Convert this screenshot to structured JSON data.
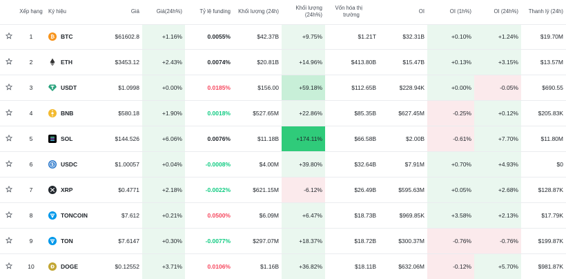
{
  "header": {
    "rank": "Xếp hạng",
    "symbol": "Ký hiệu",
    "price": "Giá",
    "price_change": "Giá(24h%)",
    "funding": "Tỷ lệ funding",
    "volume": "Khối lượng (24h)",
    "volume_change": "Khối lượng (24h%)",
    "mcap_line1": "Vốn hóa thị",
    "mcap_line2": "trường",
    "oi": "OI",
    "oi_1h": "OI (1h%)",
    "oi_24h": "OI (24h%)",
    "liq": "Thanh lý (24h)"
  },
  "rows": [
    {
      "rank": "1",
      "symbol": "BTC",
      "icon": "btc-icon",
      "price": "$61602.8",
      "price_change": "+1.16%",
      "funding": "0.0055%",
      "volume": "$42.37B",
      "volume_change": "+9.75%",
      "mcap": "$1.21T",
      "oi": "$32.31B",
      "oi_1h": "+0.10%",
      "oi_24h": "+1.24%",
      "liq": "$19.70M"
    },
    {
      "rank": "2",
      "symbol": "ETH",
      "icon": "eth-icon",
      "price": "$3453.12",
      "price_change": "+2.43%",
      "funding": "0.0074%",
      "volume": "$20.81B",
      "volume_change": "+14.96%",
      "mcap": "$413.80B",
      "oi": "$15.47B",
      "oi_1h": "+0.13%",
      "oi_24h": "+3.15%",
      "liq": "$13.57M"
    },
    {
      "rank": "3",
      "symbol": "USDT",
      "icon": "usdt-icon",
      "price": "$1.0998",
      "price_change": "+0.00%",
      "funding": "0.0185%",
      "volume": "$156.00",
      "volume_change": "+59.18%",
      "mcap": "$112.65B",
      "oi": "$228.94K",
      "oi_1h": "+0.00%",
      "oi_24h": "-0.05%",
      "liq": "$690.55"
    },
    {
      "rank": "4",
      "symbol": "BNB",
      "icon": "bnb-icon",
      "price": "$580.18",
      "price_change": "+1.90%",
      "funding": "0.0018%",
      "volume": "$527.65M",
      "volume_change": "+22.86%",
      "mcap": "$85.35B",
      "oi": "$627.45M",
      "oi_1h": "-0.25%",
      "oi_24h": "+0.12%",
      "liq": "$205.83K"
    },
    {
      "rank": "5",
      "symbol": "SOL",
      "icon": "sol-icon",
      "price": "$144.526",
      "price_change": "+6.06%",
      "funding": "0.0076%",
      "volume": "$11.18B",
      "volume_change": "+174.11%",
      "mcap": "$66.58B",
      "oi": "$2.00B",
      "oi_1h": "-0.61%",
      "oi_24h": "+7.70%",
      "liq": "$11.80M"
    },
    {
      "rank": "6",
      "symbol": "USDC",
      "icon": "usdc-icon",
      "price": "$1.00057",
      "price_change": "+0.04%",
      "funding": "-0.0008%",
      "volume": "$4.00M",
      "volume_change": "+39.80%",
      "mcap": "$32.64B",
      "oi": "$7.91M",
      "oi_1h": "+0.70%",
      "oi_24h": "+4.93%",
      "liq": "$0"
    },
    {
      "rank": "7",
      "symbol": "XRP",
      "icon": "xrp-icon",
      "price": "$0.4771",
      "price_change": "+2.18%",
      "funding": "-0.0022%",
      "volume": "$621.15M",
      "volume_change": "-6.12%",
      "mcap": "$26.49B",
      "oi": "$595.63M",
      "oi_1h": "+0.05%",
      "oi_24h": "+2.68%",
      "liq": "$128.87K"
    },
    {
      "rank": "8",
      "symbol": "TONCOIN",
      "icon": "toncoin-icon",
      "price": "$7.612",
      "price_change": "+0.21%",
      "funding": "0.0500%",
      "volume": "$6.09M",
      "volume_change": "+6.47%",
      "mcap": "$18.73B",
      "oi": "$969.85K",
      "oi_1h": "+3.58%",
      "oi_24h": "+2.13%",
      "liq": "$17.79K"
    },
    {
      "rank": "9",
      "symbol": "TON",
      "icon": "ton-icon",
      "price": "$7.6147",
      "price_change": "+0.30%",
      "funding": "-0.0077%",
      "volume": "$297.07M",
      "volume_change": "+18.37%",
      "mcap": "$18.72B",
      "oi": "$300.37M",
      "oi_1h": "-0.76%",
      "oi_24h": "-0.76%",
      "liq": "$199.87K"
    },
    {
      "rank": "10",
      "symbol": "DOGE",
      "icon": "doge-icon",
      "price": "$0.12552",
      "price_change": "+3.71%",
      "funding": "0.0106%",
      "volume": "$1.16B",
      "volume_change": "+36.82%",
      "mcap": "$18.11B",
      "oi": "$632.06M",
      "oi_1h": "-0.12%",
      "oi_24h": "+5.70%",
      "liq": "$981.87K"
    }
  ],
  "colors": {
    "positive_text": "#0ecb81",
    "negative_text": "#f6465d",
    "funding_positive": "#1e2329",
    "positive_bg_light": "#eaf7ef",
    "positive_bg_mid": "#c8efd8",
    "positive_bg_strong": "#2fcb7a",
    "negative_bg_light": "#fbeaec",
    "row_border": "#eaecef"
  }
}
